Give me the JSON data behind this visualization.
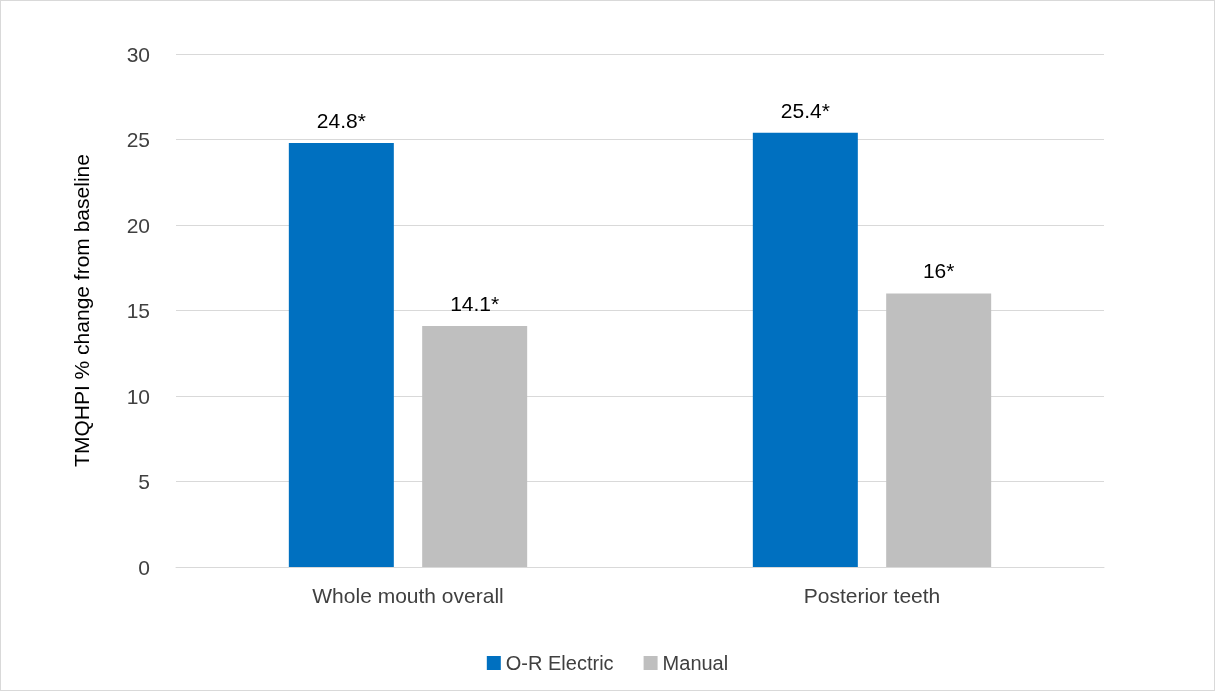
{
  "chart_data": {
    "type": "bar",
    "ylabel": "TMQHPI % change from baseline",
    "categories": [
      "Whole mouth overall",
      "Posterior teeth"
    ],
    "series": [
      {
        "name": "O-R Electric",
        "color": "#0070c0",
        "values": [
          24.8,
          25.4
        ],
        "value_labels": [
          "24.8*",
          "25.4*"
        ]
      },
      {
        "name": "Manual",
        "color": "#bfbfbf",
        "values": [
          14.1,
          16
        ],
        "value_labels": [
          "14.1*",
          "16*"
        ]
      }
    ],
    "ylim": [
      0,
      30
    ],
    "yticks": [
      0,
      5,
      10,
      15,
      20,
      25,
      30
    ],
    "grid": "y",
    "legend": "bottom"
  }
}
